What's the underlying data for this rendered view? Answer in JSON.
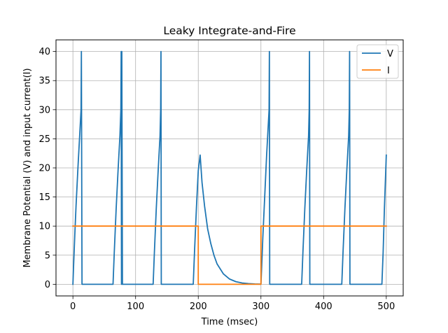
{
  "chart_data": {
    "type": "line",
    "title": "Leaky Integrate-and-Fire",
    "xlabel": "Time (msec)",
    "ylabel": "Membrane Potential (V) and input current(I)",
    "xlim": [
      -27,
      527
    ],
    "ylim": [
      -2,
      42
    ],
    "xticks": [
      0,
      100,
      200,
      300,
      400,
      500
    ],
    "yticks": [
      0,
      5,
      10,
      15,
      20,
      25,
      30,
      35,
      40
    ],
    "grid": true,
    "legend_position": "upper right",
    "series": [
      {
        "name": "V",
        "color": "#1f77b4",
        "x": [
          0,
          1,
          3,
          5,
          8,
          11,
          13,
          13.5,
          14.5,
          15,
          64,
          66,
          69,
          72,
          75,
          76.5,
          77,
          77.5,
          78,
          79,
          128,
          130,
          133,
          136,
          139,
          140,
          140.5,
          141,
          142,
          192,
          194,
          197,
          200,
          203,
          206,
          210,
          215,
          220,
          225,
          230,
          240,
          250,
          260,
          270,
          280,
          290,
          300,
          301,
          303,
          306,
          309,
          312,
          313,
          313.5,
          314,
          315,
          365,
          367,
          370,
          373,
          376,
          377,
          377.5,
          378,
          379,
          429,
          431,
          434,
          437,
          440,
          441,
          441.5,
          442,
          443,
          493,
          495,
          497,
          499,
          500
        ],
        "y": [
          0,
          3,
          8.5,
          13.5,
          20,
          26,
          30,
          40,
          0,
          0,
          0,
          5.5,
          13,
          19.5,
          25.5,
          30,
          40,
          0,
          40,
          0,
          0,
          5.5,
          13,
          19.5,
          25.5,
          30,
          40,
          0,
          0,
          0,
          5.5,
          13,
          19.5,
          22.2,
          17.5,
          13.5,
          9.5,
          7,
          5,
          3.5,
          1.8,
          0.9,
          0.45,
          0.22,
          0.11,
          0.05,
          0.02,
          2.5,
          8,
          15,
          22,
          28,
          30,
          40,
          0,
          0,
          0,
          5.5,
          13,
          19.5,
          25.5,
          30,
          40,
          0,
          0,
          0,
          5.5,
          13,
          19.5,
          25.5,
          30,
          40,
          0,
          0,
          0,
          5.5,
          13,
          19,
          22.2
        ]
      },
      {
        "name": "I",
        "color": "#ff7f0e",
        "x": [
          0,
          200,
          200,
          300,
          300,
          500
        ],
        "y": [
          10,
          10,
          0,
          0,
          10,
          10
        ]
      }
    ]
  }
}
